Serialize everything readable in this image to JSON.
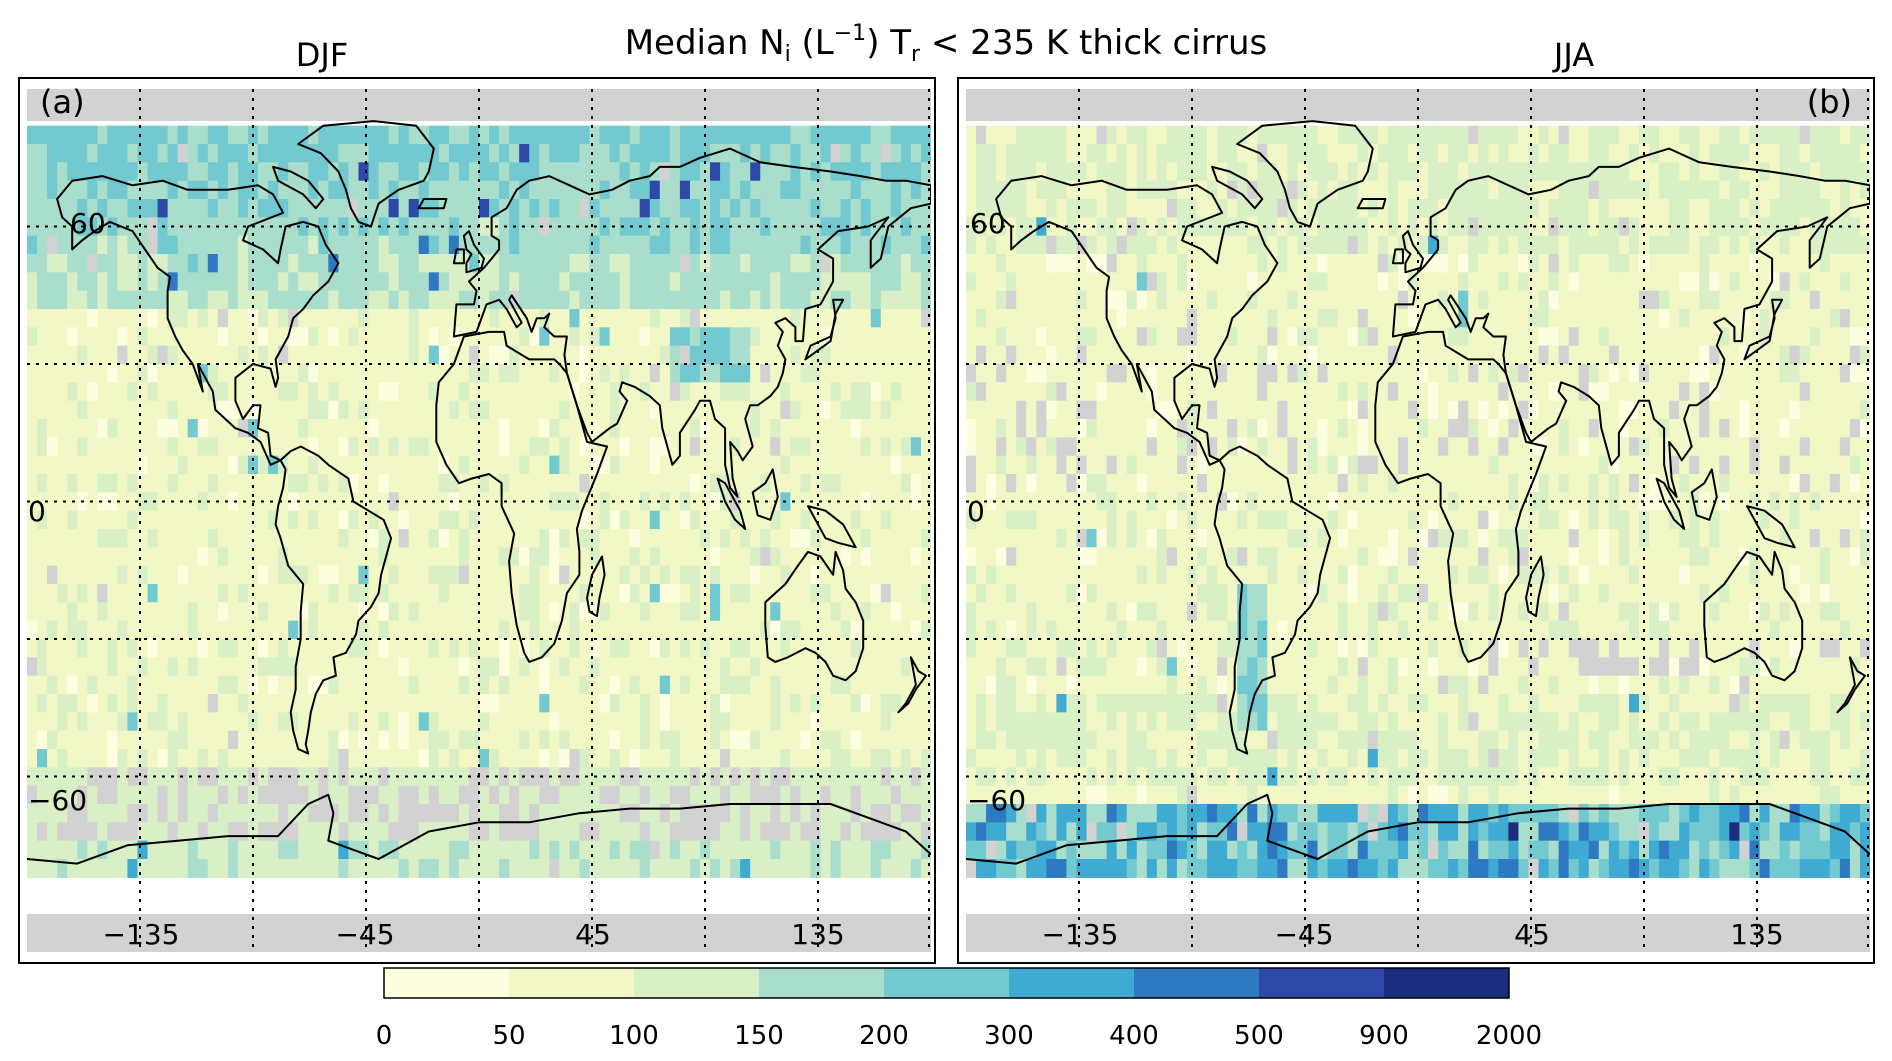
{
  "title": {
    "prefix": "Median N",
    "n_subscript": "i",
    "unit_open": " (L",
    "unit_superscript": "−1",
    "unit_close": ") T",
    "t_subscript": "r",
    "suffix": " < 235 K  thick cirrus"
  },
  "panels": [
    {
      "id": "a",
      "season": "DJF",
      "panel_label": "(a)",
      "panel_label_side": "left",
      "lon_ticks": [
        "−135",
        "−45",
        "45",
        "135"
      ],
      "lat_ticks": [
        "60",
        "0",
        "−60"
      ]
    },
    {
      "id": "b",
      "season": "JJA",
      "panel_label": "(b)",
      "panel_label_side": "right",
      "lon_ticks": [
        "−135",
        "−45",
        "45",
        "135"
      ],
      "lat_ticks": [
        "60",
        "0",
        "−60"
      ]
    }
  ],
  "colorbar": {
    "bounds": [
      "0",
      "50",
      "100",
      "150",
      "200",
      "300",
      "400",
      "500",
      "900",
      "2000"
    ],
    "colors": [
      "#fdfedf",
      "#f2f8c5",
      "#d9efc6",
      "#aadecc",
      "#72c9cf",
      "#3fabd2",
      "#2f79c2",
      "#2d48a6",
      "#1d2d7d"
    ]
  },
  "colors": {
    "no_data": "#d2d2d2",
    "coastline": "#000000",
    "background": "#ffffff"
  }
}
